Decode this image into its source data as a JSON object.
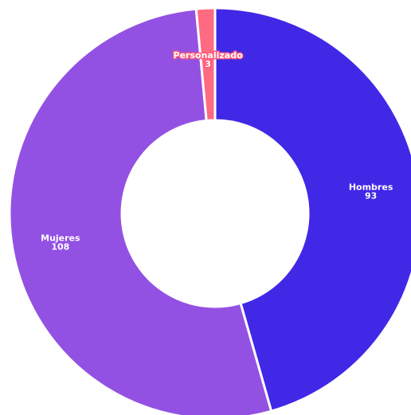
{
  "chart_data": {
    "type": "pie",
    "variant": "donut",
    "title": "",
    "slices": [
      {
        "label": "Hombres",
        "value": 93,
        "color": "#4128e6"
      },
      {
        "label": "Mujeres",
        "value": 108,
        "color": "#9351e3"
      },
      {
        "label": "Personalizado",
        "value": 3,
        "color": "#ff6a83"
      }
    ],
    "legend": "none"
  }
}
